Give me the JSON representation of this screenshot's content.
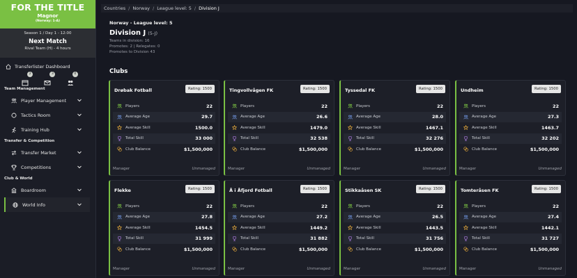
{
  "app": {
    "title": "FOR THE TITLE",
    "manager_name": "Magnor",
    "manager_sub": "(Norway: 1-A)",
    "season_line": "Season 1 / Day 1 - 12:00",
    "next_match_label": "Next Match",
    "next_match_detail": "Rival Team (H) - 4 hours",
    "accent": "#7ac043"
  },
  "sidebar": {
    "dashboard_label": "Transferlister Dashboard",
    "icons": [
      {
        "name": "calendar-icon",
        "badge": "2"
      },
      {
        "name": "mail-icon",
        "badge": "3"
      },
      {
        "name": "users-icon",
        "badge": "0"
      }
    ],
    "sections": [
      {
        "label": "Team Management",
        "items": [
          "Player Management",
          "Tactics Room",
          "Training Hub"
        ]
      },
      {
        "label": "Transfer & Competition",
        "items": [
          "Transfer Market",
          "Competitions"
        ]
      },
      {
        "label": "Club & World",
        "items": [
          "Boardroom",
          "World Info"
        ]
      }
    ],
    "active_item": "World Info"
  },
  "breadcrumb": [
    "Countries",
    "Norway",
    "League level: 5",
    "Division J"
  ],
  "header": {
    "country_line": "Norway - League level: 5",
    "division": "Division J",
    "tier": "(5-J)",
    "teams_line": "Teams in division: 16",
    "promo_line": "Promotes: 2  |  Relegates: 0",
    "promotes_to": "Promotes to Division 43",
    "clubs_heading": "Clubs"
  },
  "stat_labels": {
    "players": "Players",
    "age": "Average Age",
    "skill": "Average Skill",
    "total": "Total Skill",
    "balance": "Club Balance",
    "manager": "Manager"
  },
  "clubs": [
    {
      "name": "Drøbak Fotball",
      "rating": "Rating: 1500",
      "players": "22",
      "age": "29.7",
      "skill": "1500.0",
      "total": "33 000",
      "balance": "$1,500,000",
      "manager": "Unmanaged"
    },
    {
      "name": "Tingvollvågen FK",
      "rating": "Rating: 1500",
      "players": "22",
      "age": "26.6",
      "skill": "1479.0",
      "total": "32 538",
      "balance": "$1,500,000",
      "manager": "Unmanaged"
    },
    {
      "name": "Tyssedal FK",
      "rating": "Rating: 1500",
      "players": "22",
      "age": "28.0",
      "skill": "1467.1",
      "total": "32 276",
      "balance": "$1,500,000",
      "manager": "Unmanaged"
    },
    {
      "name": "Undheim",
      "rating": "Rating: 1500",
      "players": "22",
      "age": "27.3",
      "skill": "1463.7",
      "total": "32 202",
      "balance": "$1,500,000",
      "manager": "Unmanaged"
    },
    {
      "name": "Flekke",
      "rating": "Rating: 1500",
      "players": "22",
      "age": "27.8",
      "skill": "1454.5",
      "total": "31 999",
      "balance": "$1,500,000",
      "manager": "Unmanaged"
    },
    {
      "name": "Å i Åfjord Fotball",
      "rating": "Rating: 1500",
      "players": "22",
      "age": "27.2",
      "skill": "1449.2",
      "total": "31 882",
      "balance": "$1,500,000",
      "manager": "Unmanaged"
    },
    {
      "name": "Stikkaåsen SK",
      "rating": "Rating: 1500",
      "players": "22",
      "age": "26.5",
      "skill": "1443.5",
      "total": "31 756",
      "balance": "$1,500,000",
      "manager": "Unmanaged"
    },
    {
      "name": "Tomteråsen FK",
      "rating": "Rating: 1500",
      "players": "22",
      "age": "27.4",
      "skill": "1442.1",
      "total": "31 727",
      "balance": "$1,500,000",
      "manager": "Unmanaged"
    }
  ]
}
